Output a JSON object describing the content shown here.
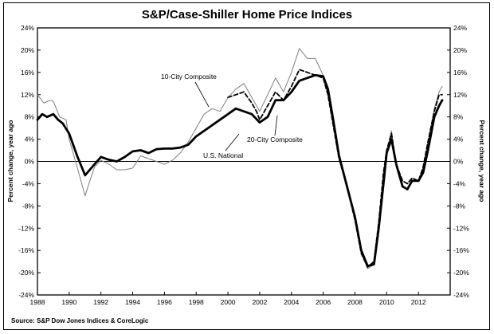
{
  "chart_data": {
    "type": "line",
    "title": "S&P/Case-Shiller Home Price Indices",
    "ylabel_left": "Percent change, year ago",
    "ylabel_right": "Percent change, year ago",
    "source": "Source: S&P Dow Jones Indices & CoreLogic",
    "ylim": [
      -24,
      24
    ],
    "xlim": [
      1988,
      2014
    ],
    "y_ticks": [
      "-24%",
      "-20%",
      "-16%",
      "-12%",
      "-8%",
      "-4%",
      "0%",
      "4%",
      "8%",
      "12%",
      "16%",
      "20%",
      "24%"
    ],
    "y_tick_values": [
      -24,
      -20,
      -16,
      -12,
      -8,
      -4,
      0,
      4,
      8,
      12,
      16,
      20,
      24
    ],
    "x_ticks": [
      "1988",
      "1990",
      "1992",
      "1994",
      "1996",
      "1998",
      "2000",
      "2002",
      "2004",
      "2006",
      "2008",
      "2010",
      "2012"
    ],
    "x_tick_values": [
      1988,
      1990,
      1992,
      1994,
      1996,
      1998,
      2000,
      2002,
      2004,
      2006,
      2008,
      2010,
      2012
    ],
    "grid": false,
    "zero_line": true,
    "annotations": [
      {
        "text": "10-City Composite",
        "series": "10-City Composite"
      },
      {
        "text": "20-City Composite",
        "series": "20-City Composite"
      },
      {
        "text": "U.S. National",
        "series": "U.S. National"
      }
    ],
    "series": [
      {
        "name": "U.S. National",
        "style": "thick",
        "color": "#000000",
        "x": [
          1988.0,
          1988.3,
          1988.6,
          1989.0,
          1989.3,
          1989.6,
          1990.0,
          1990.5,
          1991.0,
          1991.3,
          1991.6,
          1992.0,
          1992.5,
          1993.0,
          1993.5,
          1994.0,
          1994.5,
          1995.0,
          1995.5,
          1996.0,
          1996.5,
          1997.0,
          1997.5,
          1998.0,
          1998.5,
          1999.0,
          1999.5,
          2000.0,
          2000.5,
          2001.0,
          2001.5,
          2002.0,
          2002.5,
          2003.0,
          2003.5,
          2004.0,
          2004.5,
          2005.0,
          2005.5,
          2006.0,
          2006.3,
          2006.6,
          2007.0,
          2007.5,
          2008.0,
          2008.4,
          2008.8,
          2009.2,
          2009.5,
          2009.8,
          2010.0,
          2010.3,
          2010.6,
          2011.0,
          2011.3,
          2011.6,
          2012.0,
          2012.3,
          2012.6,
          2013.0,
          2013.3,
          2013.5
        ],
        "values": [
          7.5,
          8.5,
          8.0,
          8.5,
          7.5,
          6.8,
          5.0,
          1.0,
          -2.5,
          -1.5,
          -0.5,
          0.8,
          0.3,
          0.0,
          0.8,
          1.8,
          2.0,
          1.5,
          2.2,
          2.3,
          2.3,
          2.5,
          3.0,
          4.5,
          5.5,
          6.5,
          7.5,
          8.5,
          9.5,
          9.0,
          8.5,
          7.0,
          8.0,
          11.0,
          11.0,
          12.5,
          14.5,
          15.0,
          15.5,
          15.3,
          13.0,
          8.0,
          1.0,
          -4.5,
          -10.0,
          -16.0,
          -18.8,
          -18.5,
          -12.0,
          -4.0,
          1.5,
          4.0,
          -0.5,
          -4.5,
          -5.0,
          -3.5,
          -3.5,
          -2.0,
          2.0,
          8.0,
          10.0,
          11.0
        ]
      },
      {
        "name": "20-City Composite",
        "style": "dashed",
        "color": "#000000",
        "x": [
          2000.0,
          2000.5,
          2001.0,
          2001.5,
          2001.8,
          2002.0,
          2002.5,
          2003.0,
          2003.5,
          2004.0,
          2004.5,
          2005.0,
          2005.5,
          2006.0,
          2006.3,
          2006.6,
          2007.0,
          2007.5,
          2008.0,
          2008.4,
          2008.8,
          2009.2,
          2009.5,
          2009.8,
          2010.0,
          2010.3,
          2010.6,
          2011.0,
          2011.3,
          2011.6,
          2012.0,
          2012.3,
          2012.6,
          2013.0,
          2013.3,
          2013.5
        ],
        "values": [
          11.5,
          12.0,
          12.5,
          10.5,
          9.0,
          7.5,
          10.0,
          12.5,
          11.0,
          13.5,
          16.5,
          16.0,
          15.5,
          15.0,
          12.0,
          7.0,
          0.5,
          -4.5,
          -10.5,
          -16.5,
          -19.0,
          -18.0,
          -11.0,
          -2.0,
          2.0,
          5.0,
          -0.5,
          -3.5,
          -4.0,
          -3.0,
          -3.5,
          -1.0,
          3.5,
          9.0,
          12.0,
          12.0
        ]
      },
      {
        "name": "10-City Composite",
        "style": "thin",
        "color": "#7f7f7f",
        "x": [
          1988.0,
          1988.4,
          1988.8,
          1989.0,
          1989.4,
          1989.8,
          1990.0,
          1990.5,
          1991.0,
          1991.3,
          1991.6,
          1992.0,
          1992.5,
          1993.0,
          1993.5,
          1994.0,
          1994.5,
          1995.0,
          1995.5,
          1996.0,
          1996.5,
          1997.0,
          1997.5,
          1998.0,
          1998.5,
          1999.0,
          1999.5,
          2000.0,
          2000.5,
          2001.0,
          2001.5,
          2002.0,
          2002.5,
          2003.0,
          2003.5,
          2004.0,
          2004.5,
          2005.0,
          2005.5,
          2006.0,
          2006.3,
          2006.6,
          2007.0,
          2007.5,
          2008.0,
          2008.4,
          2008.8,
          2009.2,
          2009.5,
          2009.8,
          2010.0,
          2010.3,
          2010.6,
          2011.0,
          2011.3,
          2011.6,
          2012.0,
          2012.3,
          2012.6,
          2013.0,
          2013.3,
          2013.5
        ],
        "values": [
          12.0,
          10.5,
          11.0,
          10.8,
          8.0,
          7.5,
          4.0,
          -1.0,
          -6.2,
          -3.5,
          -1.0,
          0.2,
          -0.5,
          -1.5,
          -1.5,
          -1.2,
          1.0,
          0.5,
          0.0,
          -0.5,
          0.2,
          1.5,
          3.5,
          6.0,
          8.5,
          9.5,
          9.0,
          11.5,
          13.0,
          14.0,
          11.5,
          9.0,
          12.0,
          15.0,
          12.5,
          16.0,
          20.3,
          18.5,
          18.5,
          15.5,
          12.0,
          7.0,
          1.0,
          -4.0,
          -10.0,
          -16.5,
          -19.3,
          -18.5,
          -11.5,
          -2.0,
          1.5,
          5.5,
          -0.5,
          -3.5,
          -4.0,
          -3.0,
          -3.5,
          -1.0,
          3.5,
          9.5,
          12.5,
          13.5
        ]
      }
    ]
  }
}
